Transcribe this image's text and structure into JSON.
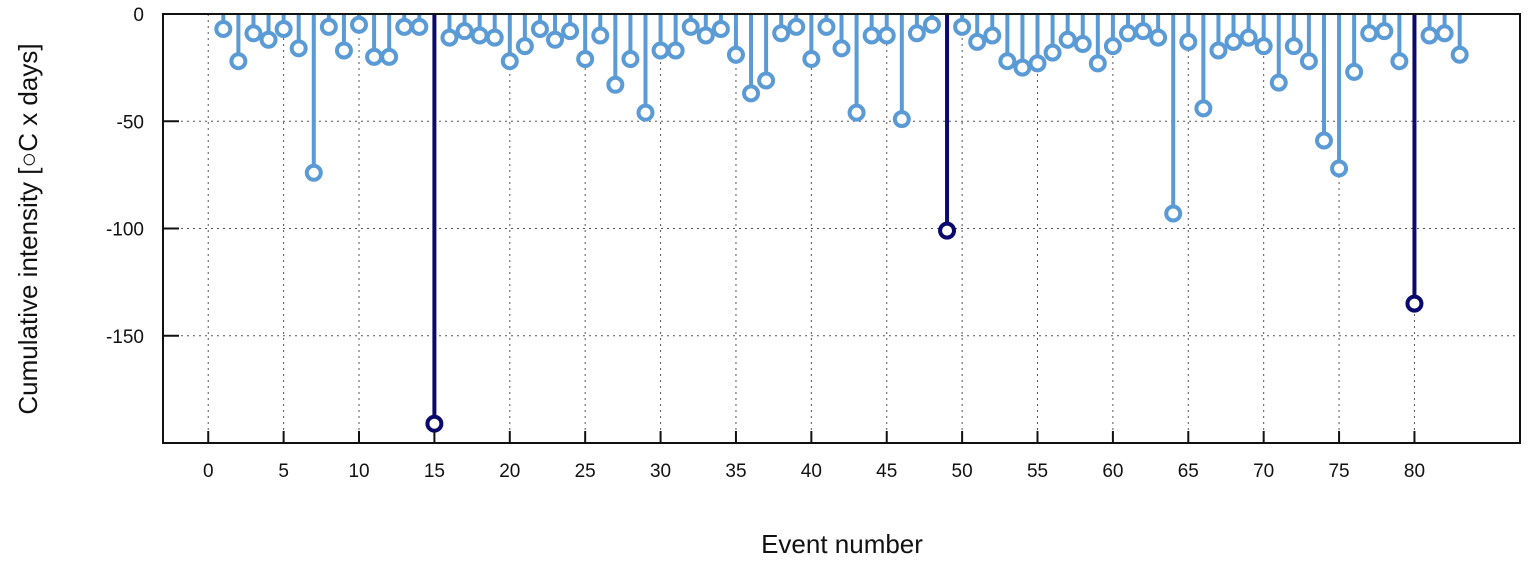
{
  "chart_data": {
    "type": "stem",
    "title": "",
    "xlabel": "Event number",
    "ylabel": "Cumulative intensity [○C x days]",
    "xlim": [
      -3,
      87
    ],
    "ylim": [
      -200,
      0
    ],
    "xticks": [
      0,
      5,
      10,
      15,
      20,
      25,
      30,
      35,
      40,
      45,
      50,
      55,
      60,
      65,
      70,
      75,
      80
    ],
    "yticks": [
      0,
      -50,
      -100,
      -150
    ],
    "grid": true,
    "colors": {
      "normal": "#5b9bd5",
      "highlight": "#0a0a6e"
    },
    "highlighted_events": [
      15,
      49,
      80
    ],
    "x": [
      1,
      2,
      3,
      4,
      5,
      6,
      7,
      8,
      9,
      10,
      11,
      12,
      13,
      14,
      15,
      16,
      17,
      18,
      19,
      20,
      21,
      22,
      23,
      24,
      25,
      26,
      27,
      28,
      29,
      30,
      31,
      32,
      33,
      34,
      35,
      36,
      37,
      38,
      39,
      40,
      41,
      42,
      43,
      44,
      45,
      46,
      47,
      48,
      49,
      50,
      51,
      52,
      53,
      54,
      55,
      56,
      57,
      58,
      59,
      60,
      61,
      62,
      63,
      64,
      65,
      66,
      67,
      68,
      69,
      70,
      71,
      72,
      73,
      74,
      75,
      76,
      77,
      78,
      79,
      80,
      81,
      82,
      83
    ],
    "values": [
      -7,
      -22,
      -9,
      -12,
      -7,
      -16,
      -74,
      -6,
      -17,
      -5,
      -20,
      -20,
      -6,
      -6,
      -191,
      -11,
      -8,
      -10,
      -11,
      -22,
      -15,
      -7,
      -12,
      -8,
      -21,
      -10,
      -33,
      -21,
      -46,
      -17,
      -17,
      -6,
      -10,
      -7,
      -19,
      -37,
      -31,
      -9,
      -6,
      -21,
      -6,
      -16,
      -46,
      -10,
      -10,
      -49,
      -9,
      -5,
      -101,
      -6,
      -13,
      -10,
      -22,
      -25,
      -23,
      -18,
      -12,
      -14,
      -23,
      -15,
      -9,
      -8,
      -11,
      -93,
      -13,
      -44,
      -17,
      -13,
      -11,
      -15,
      -32,
      -15,
      -22,
      -59,
      -72,
      -27,
      -9,
      -8,
      -22,
      -135,
      -10,
      -9,
      -19
    ]
  }
}
